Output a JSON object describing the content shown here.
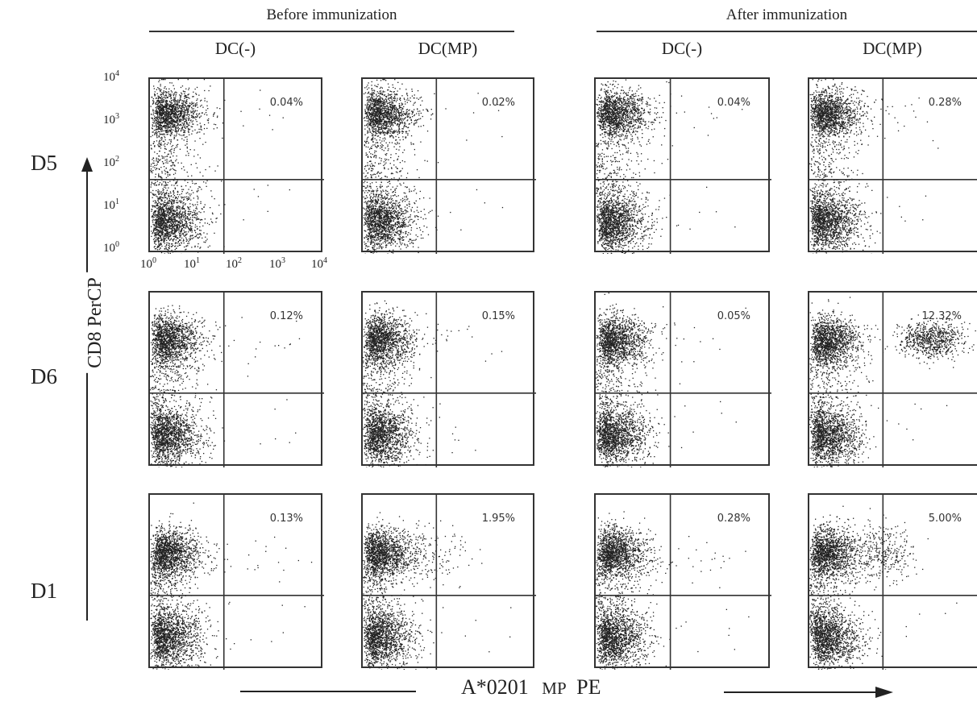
{
  "figure": {
    "group_before": "Before immunization",
    "group_after": "After immunization",
    "column_labels": [
      "DC(-)",
      "DC(MP)",
      "DC(-)",
      "DC(MP)"
    ],
    "row_labels": [
      "D5",
      "D6",
      "D1"
    ],
    "y_axis_title": "CD8 PerCP",
    "x_axis_title_main": "A*0201",
    "x_axis_title_mp": "MP",
    "x_axis_title_pe": "PE",
    "y_ticks": [
      "10",
      "10",
      "10",
      "10",
      "10"
    ],
    "y_tick_exps": [
      "4",
      "3",
      "2",
      "1",
      "0"
    ],
    "x_ticks": [
      "10",
      "10",
      "10",
      "10",
      "10"
    ],
    "x_tick_exps": [
      "0",
      "1",
      "2",
      "3",
      "4"
    ]
  },
  "colors": {
    "ink": "#222222",
    "frame": "#333333",
    "dense": "#4a4a4a"
  },
  "chart_data": {
    "type": "scatter",
    "title": "",
    "xlabel": "A*0201 MP PE",
    "ylabel": "CD8 PerCP",
    "x_scale": "log",
    "y_scale": "log",
    "xlim": [
      1,
      10000
    ],
    "ylim": [
      1,
      10000
    ],
    "grid": false,
    "quadrant_gate": {
      "x": 50,
      "y": 50
    },
    "rows": [
      "D5",
      "D6",
      "D1"
    ],
    "columns": [
      {
        "group": "Before immunization",
        "label": "DC(-)"
      },
      {
        "group": "Before immunization",
        "label": "DC(MP)"
      },
      {
        "group": "After immunization",
        "label": "DC(-)"
      },
      {
        "group": "After immunization",
        "label": "DC(MP)"
      }
    ],
    "upper_right_percent": [
      [
        "0.04%",
        "0.02%",
        "0.04%",
        "0.28%"
      ],
      [
        "0.12%",
        "0.15%",
        "0.05%",
        "12.32%"
      ],
      [
        "0.13%",
        "1.95%",
        "0.28%",
        "5.00%"
      ]
    ]
  }
}
